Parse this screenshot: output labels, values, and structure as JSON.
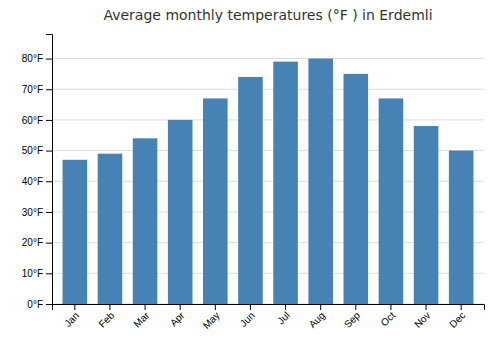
{
  "chart_data": {
    "type": "bar",
    "title": "Average monthly temperatures (°F ) in Erdemli",
    "categories": [
      "Jan",
      "Feb",
      "Mar",
      "Apr",
      "May",
      "Jun",
      "Jul",
      "Aug",
      "Sep",
      "Oct",
      "Nov",
      "Dec"
    ],
    "values": [
      47,
      49,
      54,
      60,
      67,
      74,
      79,
      80,
      75,
      67,
      58,
      50
    ],
    "ylim": [
      0,
      88
    ],
    "yticks": [
      {
        "value": 0,
        "label": "0°F"
      },
      {
        "value": 10,
        "label": "10°F"
      },
      {
        "value": 20,
        "label": "20°F"
      },
      {
        "value": 30,
        "label": "30°F"
      },
      {
        "value": 40,
        "label": "40°F"
      },
      {
        "value": 50,
        "label": "50°F"
      },
      {
        "value": 60,
        "label": "60°F"
      },
      {
        "value": 70,
        "label": "70°F"
      },
      {
        "value": 80,
        "label": "80°F"
      }
    ],
    "grid": true
  }
}
